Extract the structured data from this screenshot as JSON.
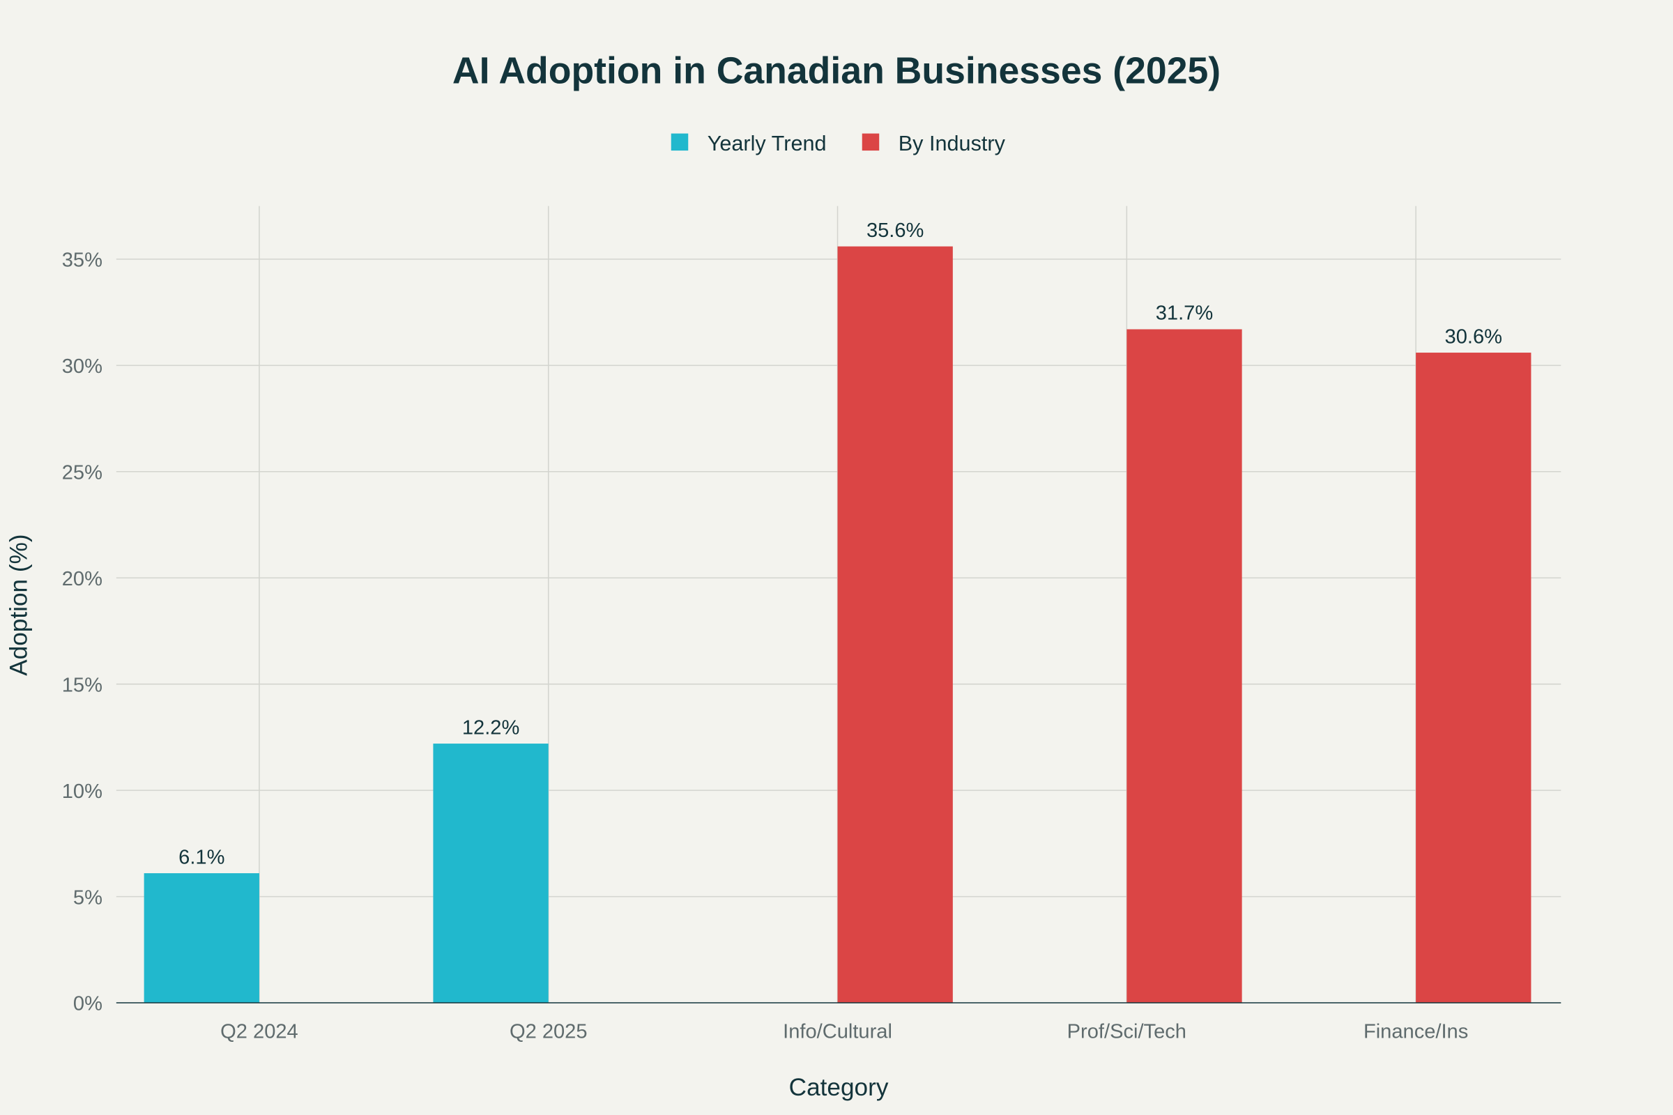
{
  "chart_data": {
    "type": "bar",
    "title": "AI Adoption in Canadian Businesses (2025)",
    "xlabel": "Category",
    "ylabel": "Adoption (%)",
    "categories": [
      "Q2 2024",
      "Q2 2025",
      "Info/Cultural",
      "Prof/Sci/Tech",
      "Finance/Ins"
    ],
    "series": [
      {
        "name": "Yearly Trend",
        "color": "#21B8CD",
        "values": [
          6.1,
          12.2,
          null,
          null,
          null
        ],
        "labels": [
          "6.1%",
          "12.2%",
          null,
          null,
          null
        ]
      },
      {
        "name": "By Industry",
        "color": "#DB4545",
        "values": [
          null,
          null,
          35.6,
          31.7,
          30.6
        ],
        "labels": [
          null,
          null,
          "35.6%",
          "31.7%",
          "30.6%"
        ]
      }
    ],
    "yticks": [
      0,
      5,
      10,
      15,
      20,
      25,
      30,
      35
    ],
    "ytick_labels": [
      "0%",
      "5%",
      "10%",
      "15%",
      "20%",
      "25%",
      "30%",
      "35%"
    ],
    "ylim": [
      0,
      37.5
    ],
    "grid": true,
    "legend": "top-center",
    "background": "#F3F3EE"
  }
}
